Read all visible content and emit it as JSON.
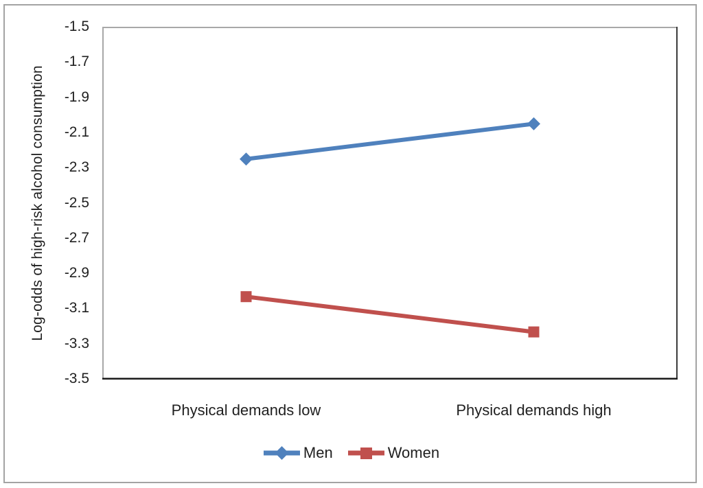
{
  "chart_data": {
    "type": "line",
    "title": "",
    "categories": [
      "Physical demands low",
      "Physical demands high"
    ],
    "series": [
      {
        "name": "Men",
        "values": [
          -2.25,
          -2.05
        ],
        "color": "#4F81BD",
        "marker": "diamond"
      },
      {
        "name": "Women",
        "values": [
          -3.03,
          -3.23
        ],
        "color": "#C0504D",
        "marker": "square"
      }
    ],
    "xlabel": "",
    "ylabel": "Log-odds of high-risk alcohol consumption",
    "ylim": [
      -3.5,
      -1.5
    ],
    "ytick_labels": [
      "-1.5",
      "-1.7",
      "-1.9",
      "-2.1",
      "-2.3",
      "-2.5",
      "-2.7",
      "-2.9",
      "-3.1",
      "-3.3",
      "-3.5"
    ],
    "grid": false,
    "legend_position": "bottom-center",
    "colors": {
      "outer_border": "#a3a3a3",
      "plot_border": "#a8a8a8",
      "axis_line": "#1a1a1a",
      "text": "#1f1f1f"
    }
  }
}
